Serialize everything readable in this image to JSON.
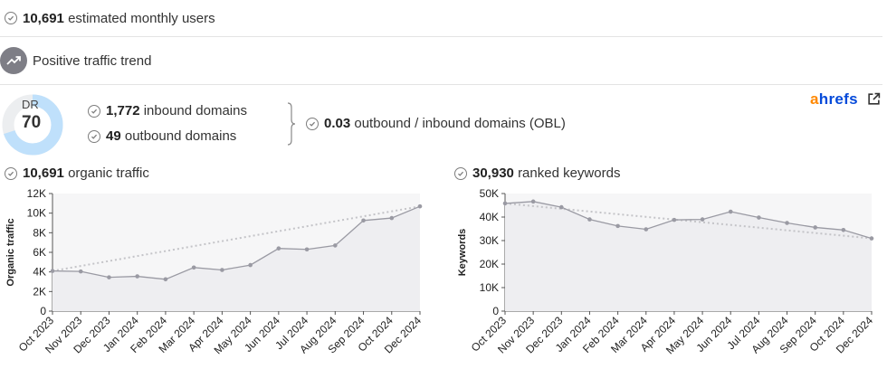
{
  "summary": {
    "monthly_users_value": "10,691",
    "monthly_users_label": "estimated monthly users",
    "trend_label": "Positive traffic trend"
  },
  "domain_rating": {
    "label": "DR",
    "value": "70",
    "percent": 70
  },
  "links": {
    "inbound_value": "1,772",
    "inbound_label": "inbound domains",
    "outbound_value": "49",
    "outbound_label": "outbound domains",
    "obl_value": "0.03",
    "obl_label": "outbound / inbound domains (OBL)"
  },
  "brand": {
    "first_letter": "a",
    "rest": "hrefs"
  },
  "colors": {
    "ahrefs_orange": "#ff8800",
    "ahrefs_blue": "#054ada",
    "dr_ring": "#bfe0fb",
    "dr_ring_bg": "#eceef0"
  },
  "traffic_header": {
    "value": "10,691",
    "label": "organic traffic"
  },
  "keywords_header": {
    "value": "30,930",
    "label": "ranked keywords"
  },
  "chart_data": [
    {
      "type": "line",
      "ylabel": "Organic traffic",
      "ylim": [
        0,
        12000
      ],
      "yticks": [
        0,
        2000,
        4000,
        6000,
        8000,
        10000,
        12000
      ],
      "ytick_labels": [
        "0",
        "2K",
        "4K",
        "6K",
        "8K",
        "10K",
        "12K"
      ],
      "categories": [
        "Oct 2023",
        "Nov 2023",
        "Dec 2023",
        "Jan 2024",
        "Feb 2024",
        "Mar 2024",
        "Apr 2024",
        "May 2024",
        "Jun 2024",
        "Jul 2024",
        "Aug 2024",
        "Sep 2024",
        "Oct 2024",
        "Dec 2024"
      ],
      "values": [
        4100,
        4050,
        3450,
        3550,
        3250,
        4450,
        4200,
        4700,
        6400,
        6300,
        6700,
        9250,
        9500,
        10691
      ],
      "trendline": [
        4100,
        10691
      ],
      "grid": false
    },
    {
      "type": "line",
      "ylabel": "Keywords",
      "ylim": [
        0,
        50000
      ],
      "yticks": [
        0,
        10000,
        20000,
        30000,
        40000,
        50000
      ],
      "ytick_labels": [
        "0",
        "10K",
        "20K",
        "30K",
        "40K",
        "50K"
      ],
      "categories": [
        "Oct 2023",
        "Nov 2023",
        "Dec 2023",
        "Jan 2024",
        "Feb 2024",
        "Mar 2024",
        "Apr 2024",
        "May 2024",
        "Jun 2024",
        "Jul 2024",
        "Aug 2024",
        "Sep 2024",
        "Oct 2024",
        "Dec 2024"
      ],
      "values": [
        45800,
        46600,
        44200,
        39000,
        36200,
        34800,
        38800,
        39000,
        42300,
        39800,
        37500,
        35600,
        34500,
        30930
      ],
      "trendline": [
        45800,
        30930
      ],
      "grid": false
    }
  ]
}
